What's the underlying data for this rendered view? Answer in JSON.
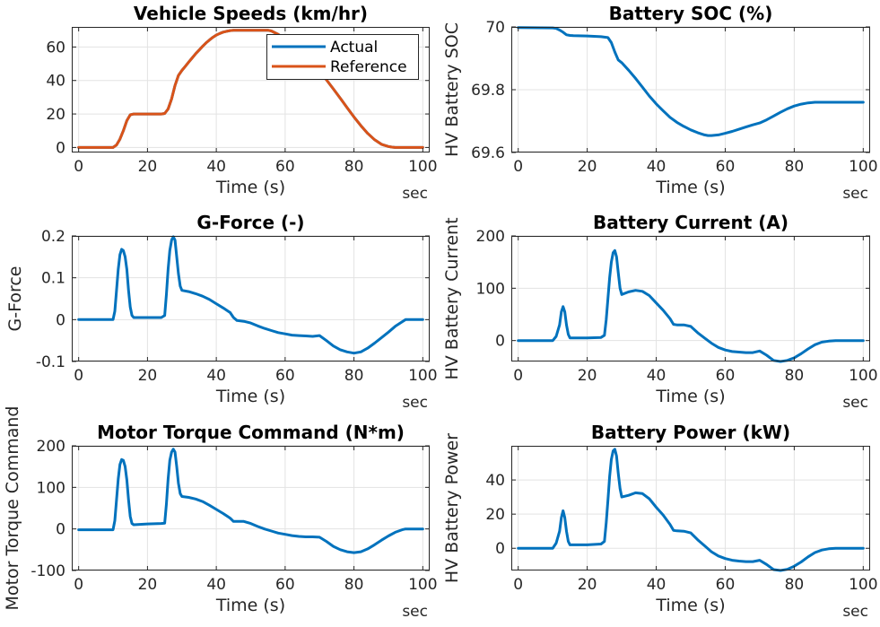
{
  "chart_data": [
    {
      "id": "speeds",
      "type": "line",
      "title": "Vehicle Speeds (km/hr)",
      "xlabel": "Time (s)",
      "ylabel": "",
      "xunit": "sec",
      "xlim": [
        -2,
        102
      ],
      "ylim": [
        -3,
        72
      ],
      "xticks": [
        0,
        20,
        40,
        60,
        80,
        100
      ],
      "yticks": [
        0,
        20,
        40,
        60
      ],
      "ytick_labels": [
        "0",
        "20",
        "40",
        "60"
      ],
      "grid": true,
      "legend": "top-right",
      "series": [
        {
          "name": "Actual",
          "color": "#0072BD",
          "x": [
            0,
            10,
            11,
            12,
            13,
            14,
            15,
            16,
            20,
            24,
            25,
            26,
            27,
            28,
            29,
            30,
            31,
            32,
            33,
            34,
            35,
            36,
            37,
            38,
            39,
            40,
            41,
            42,
            43,
            44,
            45,
            50,
            55,
            56,
            58,
            60,
            62,
            64,
            66,
            68,
            70,
            72,
            74,
            76,
            78,
            80,
            82,
            84,
            86,
            88,
            90,
            91,
            92,
            93,
            94,
            95,
            96,
            100
          ],
          "y": [
            0,
            0,
            1.5,
            5,
            10,
            16,
            19.5,
            20,
            20,
            20,
            20.3,
            23,
            29,
            37,
            43,
            46,
            48.5,
            51,
            53.5,
            56,
            58.2,
            60.4,
            62.4,
            64.2,
            65.8,
            67.1,
            68.1,
            68.9,
            69.4,
            69.8,
            70,
            70,
            70,
            69.6,
            67.5,
            64.9,
            61.9,
            58.5,
            54.7,
            50.4,
            45.6,
            40.4,
            35,
            29.4,
            23.8,
            18.2,
            13,
            8.4,
            4.6,
            1.9,
            0.6,
            0.2,
            0,
            0,
            0,
            0,
            0,
            0
          ]
        },
        {
          "name": "Reference",
          "color": "#D95319",
          "x": [
            0,
            10,
            11,
            12,
            13,
            14,
            15,
            16,
            20,
            24,
            25,
            26,
            27,
            28,
            29,
            30,
            31,
            32,
            33,
            34,
            35,
            36,
            37,
            38,
            39,
            40,
            41,
            42,
            43,
            44,
            45,
            50,
            55,
            56,
            58,
            60,
            62,
            64,
            66,
            68,
            70,
            72,
            74,
            76,
            78,
            80,
            82,
            84,
            86,
            88,
            90,
            91,
            92,
            93,
            94,
            95,
            96,
            100
          ],
          "y": [
            0,
            0,
            1.5,
            5,
            10,
            16,
            19.5,
            20,
            20,
            20,
            20.3,
            23,
            29,
            37,
            43,
            46,
            48.5,
            51,
            53.5,
            56,
            58.2,
            60.4,
            62.4,
            64.2,
            65.8,
            67.1,
            68.1,
            68.9,
            69.4,
            69.8,
            70,
            70,
            70,
            69.6,
            67.5,
            64.9,
            61.9,
            58.5,
            54.7,
            50.4,
            45.6,
            40.4,
            35,
            29.4,
            23.8,
            18.2,
            13,
            8.4,
            4.6,
            1.9,
            0.6,
            0.2,
            0,
            0,
            0,
            0,
            0,
            0
          ]
        }
      ]
    },
    {
      "id": "soc",
      "type": "line",
      "title": "Battery SOC (%)",
      "xlabel": "Time (s)",
      "ylabel": "HV Battery SOC",
      "xunit": "sec",
      "xlim": [
        -2,
        102
      ],
      "ylim": [
        69.6,
        70
      ],
      "xticks": [
        0,
        20,
        40,
        60,
        80,
        100
      ],
      "yticks": [
        69.6,
        69.8,
        70
      ],
      "ytick_labels": [
        "69.6",
        "69.8",
        "70"
      ],
      "grid": true,
      "series": [
        {
          "name": "",
          "color": "#0072BD",
          "x": [
            0,
            10,
            11,
            12,
            13,
            14,
            15,
            16,
            20,
            24,
            26,
            27,
            28,
            29,
            30,
            32,
            34,
            36,
            38,
            40,
            42,
            44,
            46,
            48,
            50,
            52,
            54,
            55,
            56,
            58,
            60,
            62,
            64,
            66,
            68,
            70,
            72,
            74,
            76,
            78,
            80,
            82,
            84,
            86,
            88,
            90,
            92,
            96,
            100
          ],
          "y": [
            69.998,
            69.997,
            69.995,
            69.99,
            69.983,
            69.975,
            69.973,
            69.972,
            69.971,
            69.969,
            69.966,
            69.95,
            69.92,
            69.895,
            69.886,
            69.862,
            69.836,
            69.808,
            69.78,
            69.755,
            69.733,
            69.712,
            69.696,
            69.683,
            69.672,
            69.663,
            69.656,
            69.654,
            69.654,
            69.656,
            69.661,
            69.667,
            69.674,
            69.681,
            69.688,
            69.694,
            69.704,
            69.716,
            69.728,
            69.739,
            69.748,
            69.754,
            69.758,
            69.76,
            69.76,
            69.76,
            69.76,
            69.76,
            69.76
          ]
        }
      ]
    },
    {
      "id": "gforce",
      "type": "line",
      "title": "G-Force (-)",
      "xlabel": "Time (s)",
      "ylabel": "G-Force",
      "xunit": "sec",
      "xlim": [
        -2,
        102
      ],
      "ylim": [
        -0.1,
        0.2
      ],
      "xticks": [
        0,
        20,
        40,
        60,
        80,
        100
      ],
      "yticks": [
        -0.1,
        0,
        0.1,
        0.2
      ],
      "ytick_labels": [
        "-0.1",
        "0",
        "0.1",
        "0.2"
      ],
      "grid": true,
      "series": [
        {
          "name": "",
          "color": "#0072BD",
          "x": [
            0,
            10,
            10.5,
            11,
            11.5,
            12,
            12.5,
            13,
            13.5,
            14,
            14.5,
            15,
            15.5,
            16,
            20,
            24,
            25,
            25.5,
            26,
            26.5,
            27,
            27.5,
            28,
            28.5,
            29,
            29.5,
            30,
            32,
            34,
            36,
            38,
            40,
            42,
            44,
            45,
            46,
            48,
            50,
            52,
            54,
            56,
            58,
            60,
            62,
            64,
            66,
            68,
            70,
            72,
            74,
            76,
            78,
            80,
            82,
            84,
            86,
            88,
            90,
            92,
            94,
            95,
            96,
            100
          ],
          "y": [
            0,
            0,
            0.02,
            0.07,
            0.12,
            0.155,
            0.168,
            0.165,
            0.15,
            0.12,
            0.07,
            0.03,
            0.01,
            0.005,
            0.005,
            0.005,
            0.01,
            0.06,
            0.12,
            0.165,
            0.19,
            0.198,
            0.19,
            0.15,
            0.11,
            0.08,
            0.07,
            0.067,
            0.062,
            0.056,
            0.048,
            0.038,
            0.028,
            0.017,
            0.005,
            -0.002,
            -0.004,
            -0.008,
            -0.015,
            -0.021,
            -0.026,
            -0.031,
            -0.034,
            -0.037,
            -0.038,
            -0.039,
            -0.04,
            -0.038,
            -0.05,
            -0.063,
            -0.072,
            -0.077,
            -0.08,
            -0.077,
            -0.068,
            -0.056,
            -0.043,
            -0.03,
            -0.016,
            -0.005,
            0,
            0,
            0
          ]
        }
      ]
    },
    {
      "id": "current",
      "type": "line",
      "title": "Battery Current (A)",
      "xlabel": "Time (s)",
      "ylabel": "HV Battery Current",
      "xunit": "sec",
      "xlim": [
        -2,
        102
      ],
      "ylim": [
        -40,
        200
      ],
      "xticks": [
        0,
        20,
        40,
        60,
        80,
        100
      ],
      "yticks": [
        0,
        100,
        200
      ],
      "ytick_labels": [
        "0",
        "100",
        "200"
      ],
      "grid": true,
      "series": [
        {
          "name": "",
          "color": "#0072BD",
          "x": [
            0,
            10,
            11,
            12,
            12.5,
            13,
            13.5,
            14,
            14.5,
            15,
            16,
            20,
            24,
            25,
            25.5,
            26,
            26.5,
            27,
            27.5,
            28,
            28.5,
            29,
            29.5,
            30,
            32,
            34,
            36,
            38,
            40,
            42,
            44,
            45,
            46,
            48,
            50,
            52,
            54,
            56,
            58,
            60,
            62,
            64,
            66,
            68,
            70,
            72,
            74,
            76,
            78,
            80,
            82,
            84,
            86,
            88,
            90,
            92,
            96,
            100
          ],
          "y": [
            0,
            0,
            8,
            30,
            55,
            65,
            55,
            30,
            12,
            5,
            5,
            5,
            6,
            10,
            40,
            80,
            120,
            150,
            168,
            172,
            160,
            130,
            100,
            88,
            93,
            96,
            94,
            86,
            72,
            58,
            42,
            31,
            30,
            30,
            27,
            15,
            5,
            -5,
            -13,
            -18,
            -21,
            -22,
            -23,
            -23,
            -20,
            -28,
            -38,
            -40,
            -38,
            -33,
            -25,
            -16,
            -8,
            -3,
            -1,
            0,
            0,
            0
          ]
        }
      ]
    },
    {
      "id": "torque",
      "type": "line",
      "title": "Motor Torque Command (N*m)",
      "xlabel": "Time (s)",
      "ylabel": "Motor Torque Command",
      "xunit": "sec",
      "xlim": [
        -2,
        102
      ],
      "ylim": [
        -100,
        200
      ],
      "xticks": [
        0,
        20,
        40,
        60,
        80,
        100
      ],
      "yticks": [
        -100,
        0,
        100,
        200
      ],
      "ytick_labels": [
        "-100",
        "0",
        "100",
        "200"
      ],
      "grid": true,
      "series": [
        {
          "name": "",
          "color": "#0072BD",
          "x": [
            0,
            10,
            10.5,
            11,
            11.5,
            12,
            12.5,
            13,
            13.5,
            14,
            14.5,
            15,
            15.5,
            16,
            20,
            24,
            25,
            25.5,
            26,
            26.5,
            27,
            27.5,
            28,
            28.5,
            29,
            29.5,
            30,
            32,
            34,
            36,
            38,
            40,
            42,
            44,
            45,
            46,
            48,
            50,
            52,
            54,
            56,
            58,
            60,
            62,
            64,
            66,
            68,
            70,
            72,
            74,
            76,
            78,
            80,
            82,
            84,
            86,
            88,
            90,
            92,
            94,
            95,
            96,
            100
          ],
          "y": [
            -2,
            -2,
            20,
            70,
            120,
            155,
            167,
            165,
            150,
            118,
            70,
            30,
            13,
            10,
            12,
            13,
            14,
            60,
            120,
            165,
            185,
            192,
            185,
            150,
            110,
            85,
            78,
            76,
            72,
            66,
            57,
            47,
            37,
            26,
            18,
            18,
            18,
            13,
            6,
            0,
            -5,
            -10,
            -13,
            -16,
            -18,
            -19,
            -19,
            -20,
            -30,
            -42,
            -50,
            -55,
            -57,
            -55,
            -48,
            -38,
            -27,
            -17,
            -8,
            -2,
            0,
            0,
            0
          ]
        }
      ]
    },
    {
      "id": "power",
      "type": "line",
      "title": "Battery Power (kW)",
      "xlabel": "Time (s)",
      "ylabel": "HV Battery Power",
      "xunit": "sec",
      "xlim": [
        -2,
        102
      ],
      "ylim": [
        -13,
        60
      ],
      "xticks": [
        0,
        20,
        40,
        60,
        80,
        100
      ],
      "yticks": [
        0,
        20,
        40
      ],
      "ytick_labels": [
        "0",
        "20",
        "40"
      ],
      "grid": true,
      "series": [
        {
          "name": "",
          "color": "#0072BD",
          "x": [
            0,
            10,
            11,
            12,
            12.5,
            13,
            13.5,
            14,
            14.5,
            15,
            16,
            20,
            24,
            25,
            25.5,
            26,
            26.5,
            27,
            27.5,
            28,
            28.5,
            29,
            29.5,
            30,
            32,
            34,
            36,
            38,
            40,
            42,
            44,
            45,
            46,
            48,
            50,
            52,
            54,
            56,
            58,
            60,
            62,
            64,
            66,
            68,
            70,
            72,
            74,
            76,
            78,
            80,
            82,
            84,
            86,
            88,
            90,
            92,
            96,
            100
          ],
          "y": [
            0,
            0,
            3,
            10,
            18,
            22,
            18,
            10,
            4,
            2,
            2,
            2,
            2.5,
            4,
            15,
            28,
            42,
            52,
            57,
            58,
            54,
            44,
            35,
            30,
            31,
            32.5,
            32,
            29,
            24,
            19.5,
            14,
            10.5,
            10.2,
            10,
            9,
            5,
            1.5,
            -2,
            -4.5,
            -6,
            -7,
            -7.5,
            -7.8,
            -7.8,
            -7,
            -9.5,
            -12.5,
            -13,
            -12.3,
            -10.5,
            -8,
            -5,
            -2.5,
            -1,
            -0.3,
            0,
            0,
            0
          ]
        }
      ]
    }
  ]
}
